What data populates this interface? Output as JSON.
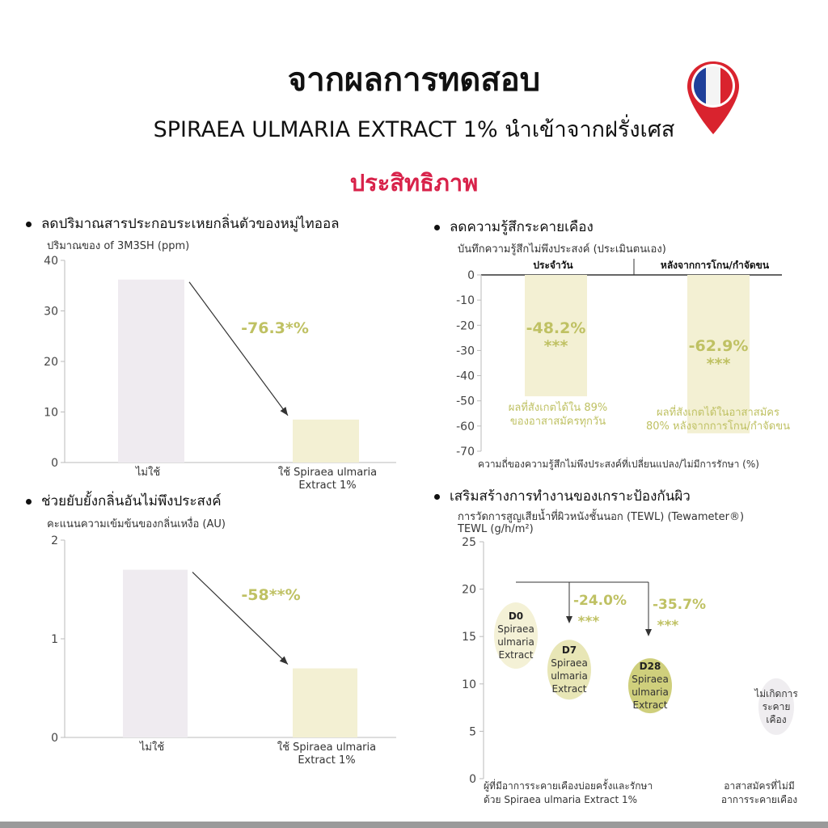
{
  "header": {
    "title": "จากผลการทดสอบ",
    "subtitle": "SPIRAEA ULMARIA EXTRACT 1% นำเข้าจากฝรั่งเศส",
    "section": "ประสิทธิภาพ",
    "flag_icon": "france-location-pin-icon"
  },
  "colors": {
    "control_bar": "#efebf0",
    "treated_bar": "#f3f0d3",
    "accent_text": "#bfc163",
    "heading_red": "#d8224a",
    "pin_red": "#d9232e",
    "pin_blue": "#1f3f9a"
  },
  "chart_data": [
    {
      "type": "bar",
      "heading": "ลดปริมาณสารประกอบระเหยกลิ่นตัวของหมู่ไทออล",
      "ylabel": "ปริมาณของ of 3M3SH (ppm)",
      "categories": [
        "ไม่ใช้",
        "ใช้ Spiraea ulmaria\nExtract 1%"
      ],
      "values": [
        36.2,
        8.5
      ],
      "ylim": [
        0,
        40
      ],
      "yticks": [
        "0",
        "10",
        "20",
        "30",
        "40"
      ],
      "annotation": "-76.3*%"
    },
    {
      "type": "bar",
      "heading": "ลดความรู้สึกระคายเคือง",
      "ylabel": "บันทึกความรู้สึกไม่พึงประสงค์ (ประเมินตนเอง)",
      "categories": [
        "ประจำวัน",
        "หลังจากการโกน/กำจัดขน"
      ],
      "values": [
        -48.2,
        -62.9
      ],
      "labels": [
        "-48.2%",
        "-62.9%"
      ],
      "significance": [
        "***",
        "***"
      ],
      "notes": [
        "ผลที่สังเกตได้ใน 89%\nของอาสาสมัครทุกวัน",
        "ผลที่สังเกตได้ในอาสาสมัคร\n80% หลังจากการโกน/กำจัดขน"
      ],
      "ylim": [
        -70,
        0
      ],
      "yticks": [
        "0",
        "-10",
        "-20",
        "-30",
        "-40",
        "-50",
        "-60",
        "-70"
      ],
      "xlabel": "ความถี่ของความรู้สึกไม่พึงประสงค์ที่เปลี่ยนแปลง/ไม่มีการรักษา (%)"
    },
    {
      "type": "bar",
      "heading": "ช่วยยับยั้งกลิ่นอันไม่พึงประสงค์",
      "ylabel": "คะแนนความเข้มข้นของกลิ่นเหงื่อ (AU)",
      "categories": [
        "ไม่ใช้",
        "ใช้ Spiraea ulmaria\nExtract 1%"
      ],
      "values": [
        1.7,
        0.7
      ],
      "ylim": [
        0,
        2
      ],
      "yticks": [
        "0",
        "1",
        "2"
      ],
      "annotation": "-58**%"
    },
    {
      "type": "scatter",
      "heading": "เสริมสร้างการทำงานของเกราะป้องกันผิว",
      "subtitle": "การวัดการสูญเสียน้ำที่ผิวหนังชั้นนอก (TEWL) (Tewameter®)",
      "ylabel": "TEWL (g/h/m²)",
      "ylim": [
        0,
        25
      ],
      "yticks": [
        "0",
        "5",
        "10",
        "15",
        "20",
        "25"
      ],
      "points": [
        {
          "bold": "D0",
          "label": "Spiraea\nulmaria\nExtract",
          "y": 15.1
        },
        {
          "bold": "D7",
          "label": "Spiraea\nulmaria\nExtract",
          "y": 11.5
        },
        {
          "bold": "D28",
          "label": "Spiraea\nulmaria\nExtract",
          "y": 9.8
        },
        {
          "bold": "",
          "label": "ไม่เกิดการ\nระคาย\nเคือง",
          "y": 7.6
        }
      ],
      "changes": [
        {
          "label": "-24.0%",
          "sig": "***"
        },
        {
          "label": "-35.7%",
          "sig": "***"
        }
      ],
      "group_labels": [
        "ผู้ที่มีอาการระคายเคืองบ่อยครั้งและรักษา\nด้วย Spiraea ulmaria Extract 1%",
        "อาสาสมัครที่ไม่มี\nอาการระคายเคือง"
      ]
    }
  ]
}
